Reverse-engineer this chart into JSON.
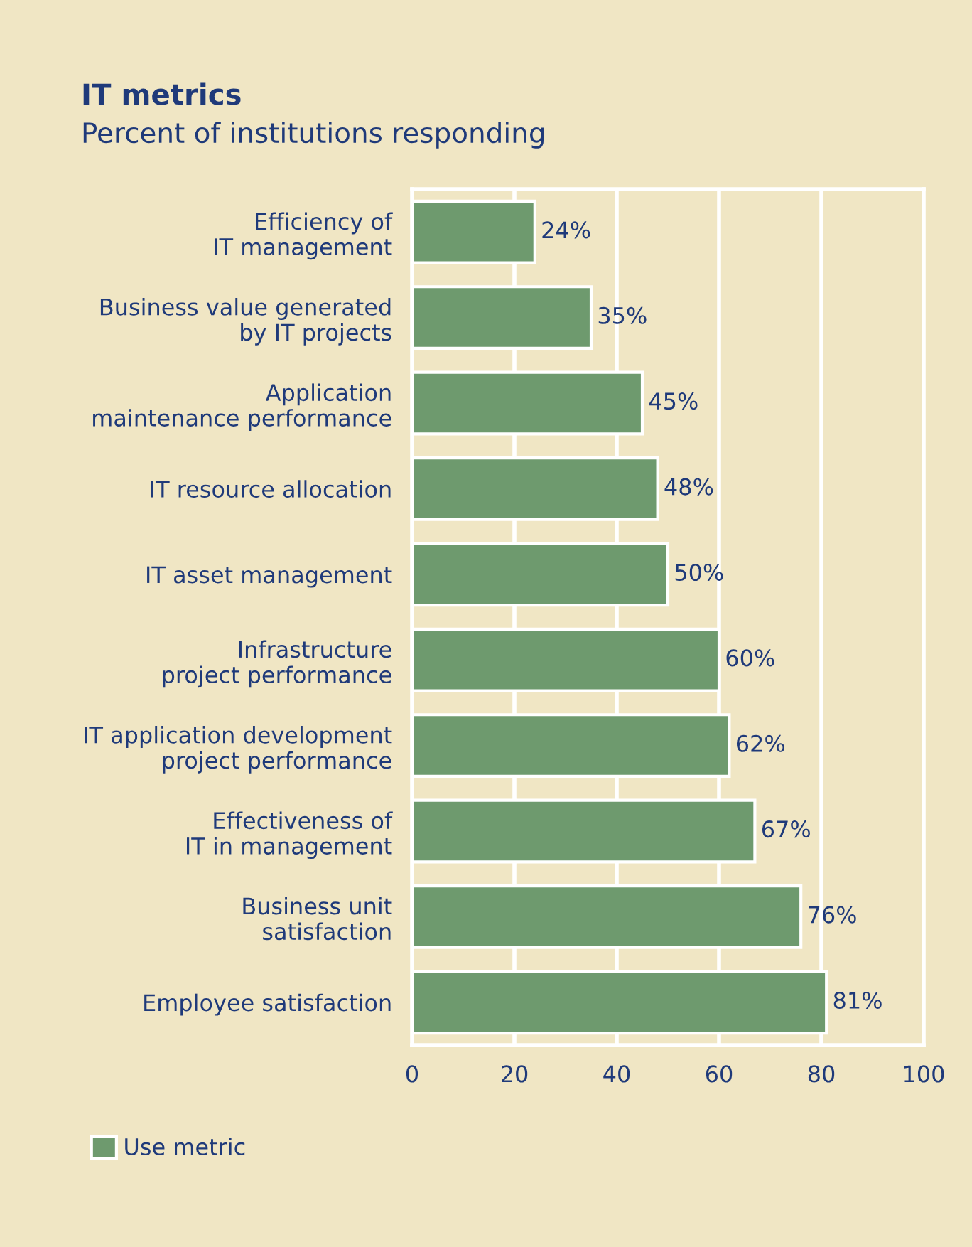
{
  "chart_data": {
    "type": "bar",
    "orientation": "horizontal",
    "title": "IT metrics",
    "subtitle": "Percent of institutions responding",
    "categories": [
      "Efficiency of\nIT management",
      "Business value generated\nby IT projects",
      "Application\nmaintenance performance",
      "IT resource allocation",
      "IT asset management",
      "Infrastructure\nproject performance",
      "IT application development\nproject performance",
      "Effectiveness of\nIT in management",
      "Business unit\nsatisfaction",
      "Employee satisfaction"
    ],
    "series": [
      {
        "name": "Use metric",
        "color": "#6e9a6e",
        "values": [
          24,
          35,
          45,
          48,
          50,
          60,
          62,
          67,
          76,
          81
        ],
        "value_labels": [
          "24%",
          "35%",
          "45%",
          "48%",
          "50%",
          "60%",
          "62%",
          "67%",
          "76%",
          "81%"
        ]
      }
    ],
    "xlim": [
      0,
      100
    ],
    "xticks": [
      0,
      20,
      40,
      60,
      80,
      100
    ],
    "grid": "x",
    "legend": "bottom left"
  }
}
